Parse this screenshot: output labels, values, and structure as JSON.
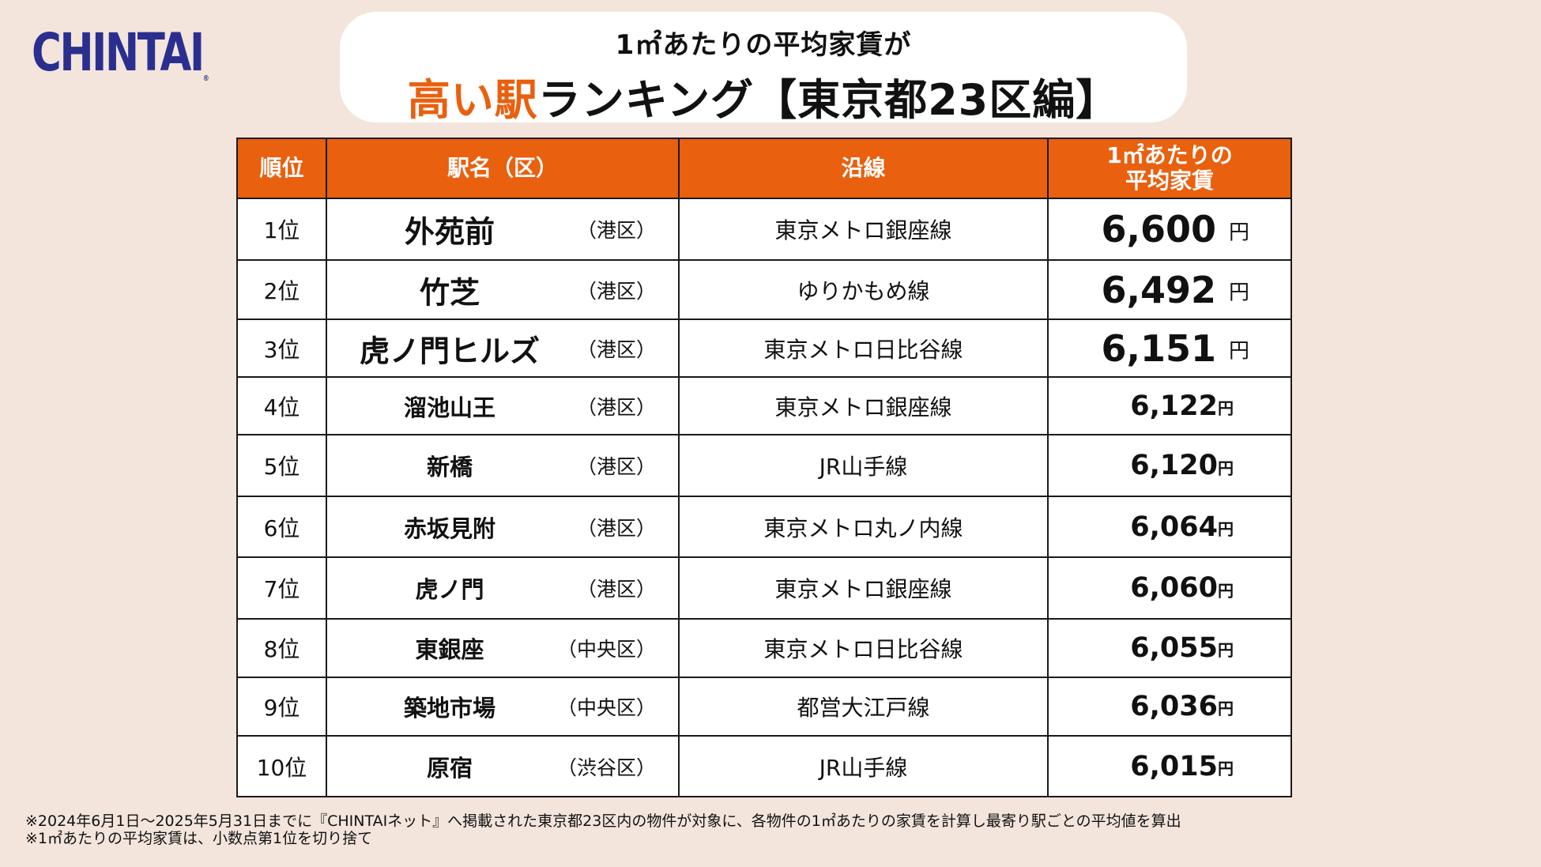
{
  "logo": {
    "text": "CHINTAI",
    "reg": "®"
  },
  "title": {
    "sub": "1㎡あたりの平均家賃が",
    "accent": "高い駅",
    "main": "ランキング【東京都23区編】"
  },
  "table": {
    "headers": {
      "rank": "順位",
      "station": "駅名（区）",
      "line": "沿線",
      "price_line1": "1㎡あたりの",
      "price_line2": "平均家賃"
    },
    "rows": [
      {
        "rank": "1位",
        "station": "外苑前",
        "ward": "（港区）",
        "line": "東京メトロ銀座線",
        "price": "6,600",
        "unit": "円"
      },
      {
        "rank": "2位",
        "station": "竹芝",
        "ward": "（港区）",
        "line": "ゆりかもめ線",
        "price": "6,492",
        "unit": "円"
      },
      {
        "rank": "3位",
        "station": "虎ノ門ヒルズ",
        "ward": "（港区）",
        "line": "東京メトロ日比谷線",
        "price": "6,151",
        "unit": "円"
      },
      {
        "rank": "4位",
        "station": "溜池山王",
        "ward": "（港区）",
        "line": "東京メトロ銀座線",
        "price": "6,122",
        "unit": "円"
      },
      {
        "rank": "5位",
        "station": "新橋",
        "ward": "（港区）",
        "line": "JR山手線",
        "price": "6,120",
        "unit": "円"
      },
      {
        "rank": "6位",
        "station": "赤坂見附",
        "ward": "（港区）",
        "line": "東京メトロ丸ノ内線",
        "price": "6,064",
        "unit": "円"
      },
      {
        "rank": "7位",
        "station": "虎ノ門",
        "ward": "（港区）",
        "line": "東京メトロ銀座線",
        "price": "6,060",
        "unit": "円"
      },
      {
        "rank": "8位",
        "station": "東銀座",
        "ward": "（中央区）",
        "line": "東京メトロ日比谷線",
        "price": "6,055",
        "unit": "円"
      },
      {
        "rank": "9位",
        "station": "築地市場",
        "ward": "（中央区）",
        "line": "都営大江戸線",
        "price": "6,036",
        "unit": "円"
      },
      {
        "rank": "10位",
        "station": "原宿",
        "ward": "（渋谷区）",
        "line": "JR山手線",
        "price": "6,015",
        "unit": "円"
      }
    ]
  },
  "footnotes": {
    "line1": "※2024年6月1日～2025年5月31日までに『CHINTAIネット』へ掲載された東京都23区内の物件が対象に、各物件の1㎡あたりの家賃を計算し最寄り駅ごとの平均値を算出",
    "line2": "※1㎡あたりの平均家賃は、小数点第1位を切り捨て"
  },
  "colors": {
    "accent": "#e9600e",
    "brand": "#2a2f8f",
    "background": "#f3e5dc"
  }
}
